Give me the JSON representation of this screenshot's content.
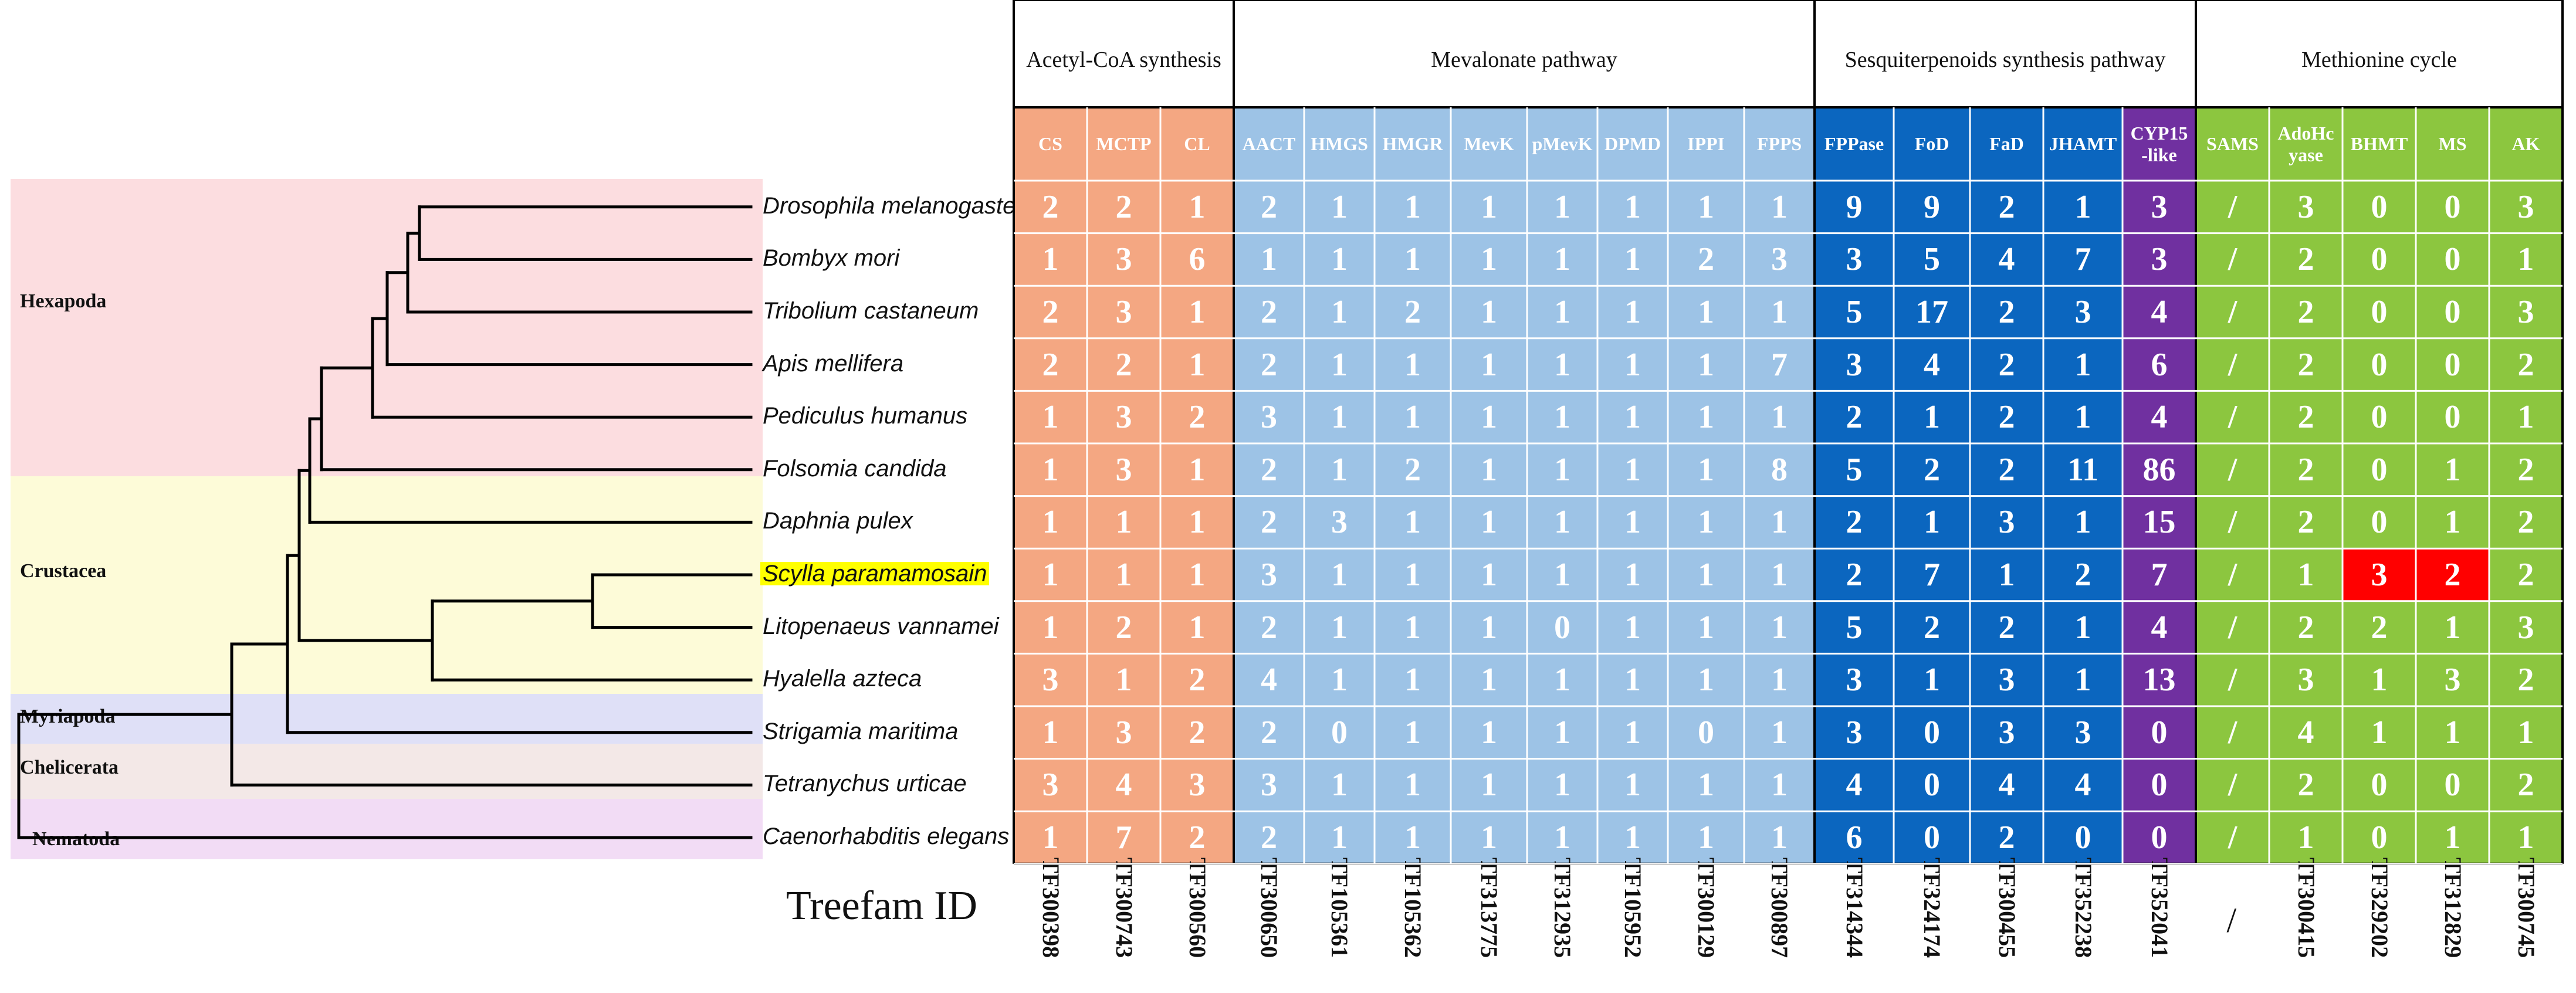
{
  "clades": [
    {
      "name": "Hexapoda",
      "color": "#fcdde0"
    },
    {
      "name": "Crustacea",
      "color": "#fdfbd8"
    },
    {
      "name": "Myriapoda",
      "color": "#dfe0f7"
    },
    {
      "name": "Chelicerata",
      "color": "#f3e8e7"
    },
    {
      "name": "Nematoda",
      "color": "#f2dcf5"
    }
  ],
  "species": [
    {
      "name": "Drosophila melanogaster",
      "highlight": false
    },
    {
      "name": "Bombyx mori",
      "highlight": false
    },
    {
      "name": "Tribolium castaneum",
      "highlight": false
    },
    {
      "name": "Apis mellifera",
      "highlight": false
    },
    {
      "name": "Pediculus humanus",
      "highlight": false
    },
    {
      "name": "Folsomia candida",
      "highlight": false
    },
    {
      "name": "Daphnia pulex",
      "highlight": false
    },
    {
      "name": "Scylla paramamosain",
      "highlight": true
    },
    {
      "name": "Litopenaeus vannamei",
      "highlight": false
    },
    {
      "name": "Hyalella azteca",
      "highlight": false
    },
    {
      "name": "Strigamia maritima",
      "highlight": false
    },
    {
      "name": "Tetranychus urticae",
      "highlight": false
    },
    {
      "name": "Caenorhabditis elegans",
      "highlight": false
    }
  ],
  "groups": [
    {
      "name": "Acetyl-CoA synthesis",
      "color": "#f4a782"
    },
    {
      "name": "Mevalonate pathway",
      "color": "#9dc3e6"
    },
    {
      "name": "Sesquiterpenoids synthesis pathway",
      "color": "#0b66bf"
    },
    {
      "name": "Methionine cycle",
      "color": "#8cc63f"
    }
  ],
  "genes": [
    {
      "label": "CS",
      "group": 0,
      "treefam": "TF300398"
    },
    {
      "label": "MCTP",
      "group": 0,
      "treefam": "TF300743"
    },
    {
      "label": "CL",
      "group": 0,
      "treefam": "TF300560"
    },
    {
      "label": "AACT",
      "group": 1,
      "treefam": "TF300650"
    },
    {
      "label": "HMGS",
      "group": 1,
      "treefam": "TF105361"
    },
    {
      "label": "HMGR",
      "group": 1,
      "treefam": "TF105362"
    },
    {
      "label": "MevK",
      "group": 1,
      "treefam": "TF313775"
    },
    {
      "label": "pMevK",
      "group": 1,
      "treefam": "TF312935"
    },
    {
      "label": "DPMD",
      "group": 1,
      "treefam": "TF105952"
    },
    {
      "label": "IPPI",
      "group": 1,
      "treefam": "TF300129"
    },
    {
      "label": "FPPS",
      "group": 1,
      "treefam": "TF300897"
    },
    {
      "label": "FPPase",
      "group": 2,
      "treefam": "TF314344"
    },
    {
      "label": "FoD",
      "group": 2,
      "treefam": "TF324174"
    },
    {
      "label": "FaD",
      "group": 2,
      "treefam": "TF300455"
    },
    {
      "label": "JHAMT",
      "group": 2,
      "treefam": "TF352238"
    },
    {
      "label": "CYP15\n-like",
      "group": 2,
      "treefam": "TF352041",
      "color": "#7030a0"
    },
    {
      "label": "SAMS",
      "group": 3,
      "treefam": "/"
    },
    {
      "label": "AdoHc\nyase",
      "group": 3,
      "treefam": "TF300415"
    },
    {
      "label": "BHMT",
      "group": 3,
      "treefam": "TF329202"
    },
    {
      "label": "MS",
      "group": 3,
      "treefam": "TF312829"
    },
    {
      "label": "AK",
      "group": 3,
      "treefam": "TF300745"
    }
  ],
  "values": [
    [
      "2",
      "2",
      "1",
      "2",
      "1",
      "1",
      "1",
      "1",
      "1",
      "1",
      "1",
      "9",
      "9",
      "2",
      "1",
      "3",
      "/",
      "3",
      "0",
      "0",
      "3"
    ],
    [
      "1",
      "3",
      "6",
      "1",
      "1",
      "1",
      "1",
      "1",
      "1",
      "2",
      "3",
      "3",
      "5",
      "4",
      "7",
      "3",
      "/",
      "2",
      "0",
      "0",
      "1"
    ],
    [
      "2",
      "3",
      "1",
      "2",
      "1",
      "2",
      "1",
      "1",
      "1",
      "1",
      "1",
      "5",
      "17",
      "2",
      "3",
      "4",
      "/",
      "2",
      "0",
      "0",
      "3"
    ],
    [
      "2",
      "2",
      "1",
      "2",
      "1",
      "1",
      "1",
      "1",
      "1",
      "1",
      "7",
      "3",
      "4",
      "2",
      "1",
      "6",
      "/",
      "2",
      "0",
      "0",
      "2"
    ],
    [
      "1",
      "3",
      "2",
      "3",
      "1",
      "1",
      "1",
      "1",
      "1",
      "1",
      "1",
      "2",
      "1",
      "2",
      "1",
      "4",
      "/",
      "2",
      "0",
      "0",
      "1"
    ],
    [
      "1",
      "3",
      "1",
      "2",
      "1",
      "2",
      "1",
      "1",
      "1",
      "1",
      "8",
      "5",
      "2",
      "2",
      "11",
      "86",
      "/",
      "2",
      "0",
      "1",
      "2"
    ],
    [
      "1",
      "1",
      "1",
      "2",
      "3",
      "1",
      "1",
      "1",
      "1",
      "1",
      "1",
      "2",
      "1",
      "3",
      "1",
      "15",
      "/",
      "2",
      "0",
      "1",
      "2"
    ],
    [
      "1",
      "1",
      "1",
      "3",
      "1",
      "1",
      "1",
      "1",
      "1",
      "1",
      "1",
      "2",
      "7",
      "1",
      "2",
      "7",
      "/",
      "1",
      "3",
      "2",
      "2"
    ],
    [
      "1",
      "2",
      "1",
      "2",
      "1",
      "1",
      "1",
      "0",
      "1",
      "1",
      "1",
      "5",
      "2",
      "2",
      "1",
      "4",
      "/",
      "2",
      "2",
      "1",
      "3"
    ],
    [
      "3",
      "1",
      "2",
      "4",
      "1",
      "1",
      "1",
      "1",
      "1",
      "1",
      "1",
      "3",
      "1",
      "3",
      "1",
      "13",
      "/",
      "3",
      "1",
      "3",
      "2"
    ],
    [
      "1",
      "3",
      "2",
      "2",
      "0",
      "1",
      "1",
      "1",
      "1",
      "0",
      "1",
      "3",
      "0",
      "3",
      "3",
      "0",
      "/",
      "4",
      "1",
      "1",
      "1"
    ],
    [
      "3",
      "4",
      "3",
      "3",
      "1",
      "1",
      "1",
      "1",
      "1",
      "1",
      "1",
      "4",
      "0",
      "4",
      "4",
      "0",
      "/",
      "2",
      "0",
      "0",
      "2"
    ],
    [
      "1",
      "7",
      "2",
      "2",
      "1",
      "1",
      "1",
      "1",
      "1",
      "1",
      "1",
      "6",
      "0",
      "2",
      "0",
      "0",
      "/",
      "1",
      "0",
      "1",
      "1"
    ]
  ],
  "highlight_cells": [
    {
      "row": 7,
      "col": 18,
      "color": "#ff0000"
    },
    {
      "row": 7,
      "col": 19,
      "color": "#ff0000"
    }
  ],
  "treefam_label": "Treefam ID"
}
